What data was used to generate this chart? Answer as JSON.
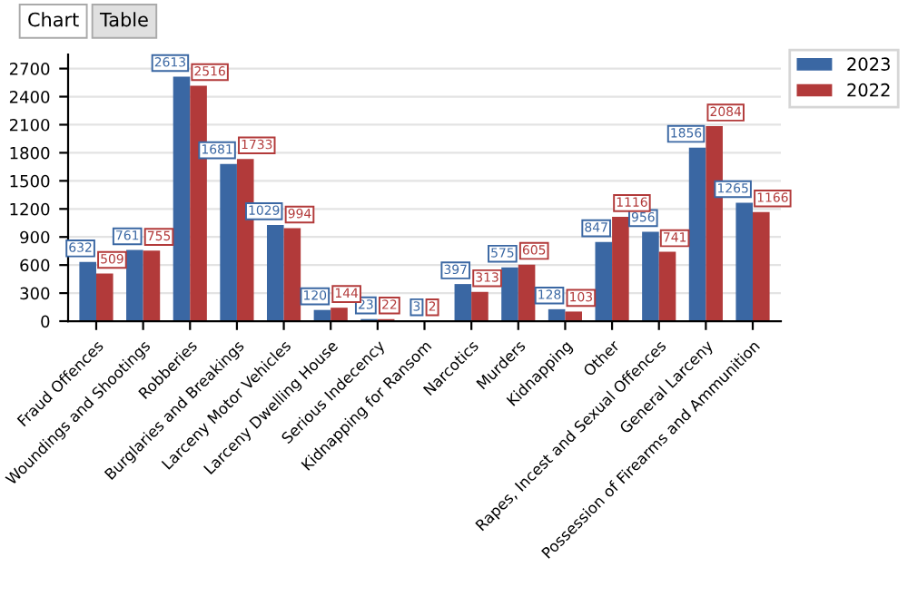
{
  "chart_data": {
    "type": "bar",
    "categories": [
      "Fraud Offences",
      "Woundings and Shootings",
      "Robberies",
      "Burglaries and Breakings",
      "Larceny Motor Vehicles",
      "Larceny Dwelling House",
      "Serious Indecency",
      "Kidnapping for Ransom",
      "Narcotics",
      "Murders",
      "Kidnapping",
      "Other",
      "Rapes, Incest and Sexual Offences",
      "General Larceny",
      "Possession of Firearms and Ammunition"
    ],
    "series": [
      {
        "name": "2023",
        "color": "#3a67a3",
        "values": [
          632,
          761,
          2613,
          1681,
          1029,
          120,
          23,
          3,
          397,
          575,
          128,
          847,
          956,
          1856,
          1265
        ]
      },
      {
        "name": "2022",
        "color": "#b23a3a",
        "values": [
          509,
          755,
          2516,
          1733,
          994,
          144,
          22,
          2,
          313,
          605,
          103,
          1116,
          741,
          2084,
          1166
        ]
      }
    ],
    "ylim": [
      0,
      2850
    ],
    "yticks": [
      0,
      300,
      600,
      900,
      1200,
      1500,
      1800,
      2100,
      2400,
      2700
    ],
    "grid": "y",
    "legend": "top right",
    "data_labels": true,
    "annotations": [
      "Chart",
      "Table"
    ]
  }
}
